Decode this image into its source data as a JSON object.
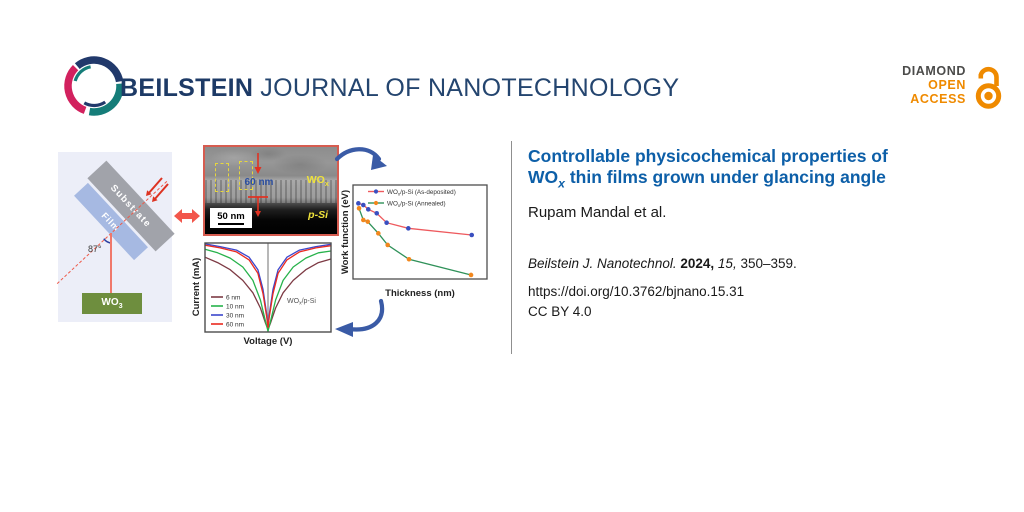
{
  "header": {
    "journal_name_bold": "BEILSTEIN",
    "journal_name_rest": "JOURNAL OF NANOTECHNOLOGY",
    "brand_colors": {
      "navy": "#1d3a66",
      "teal": "#157d79",
      "crimson": "#d2215e"
    },
    "open_access": {
      "line1": "DIAMOND",
      "line2": "OPEN",
      "line3": "ACCESS",
      "text_color": "#4b4b4a",
      "accent_color": "#ef8a00"
    }
  },
  "schematic": {
    "substrate_label": "Substrate",
    "film_label": "Film",
    "source_label": {
      "pre": "WO",
      "sub": "3"
    },
    "angle_label": "87°",
    "colors": {
      "panel_bg": "#eceef8",
      "substrate": "#a1a3aa",
      "film": "#a6b9e2",
      "source_box": "#6e8e3e",
      "beam_red": "#f0786b"
    }
  },
  "tem": {
    "thickness_label": "60 nm",
    "film_label": {
      "pre": "WO",
      "sub": "x"
    },
    "substrate_label": "p-Si",
    "scalebar_label": "50 nm"
  },
  "article": {
    "title": {
      "line1": "Controllable physicochemical properties of",
      "line2_pre": "WO",
      "line2_sub": "x",
      "line2_post": " thin films grown under glancing angle",
      "color": "#0d5fa8"
    },
    "authors": "Rupam Mandal et al.",
    "citation": {
      "journal": "Beilstein J. Nanotechnol.",
      "year": "2024,",
      "volume": "15,",
      "pages": "350–359."
    },
    "doi": "https://doi.org/10.3762/bjnano.15.31",
    "license": "CC BY 4.0"
  },
  "chart_data": [
    {
      "type": "line",
      "id": "iv",
      "xlabel": "Voltage (V)",
      "ylabel": "Current (mA)",
      "annotation": {
        "pre": "WO",
        "sub": "x",
        "post": "/p-Si"
      },
      "axes_numeric": false,
      "note": "symmetric V-shaped I-V curves on unlabeled axes; points are normalized plot coordinates (x 0-1 left-right, y 0-1 bottom-top), vertical zero-voltage line at x=0.5",
      "legend_position": "lower-left-inside",
      "series": [
        {
          "name": "6 nm",
          "color": "#7d3a44",
          "points": [
            [
              0,
              0.84
            ],
            [
              0.1,
              0.78
            ],
            [
              0.2,
              0.7
            ],
            [
              0.3,
              0.58
            ],
            [
              0.38,
              0.44
            ],
            [
              0.44,
              0.27
            ],
            [
              0.48,
              0.1
            ],
            [
              0.5,
              0.03
            ],
            [
              0.52,
              0.1
            ],
            [
              0.56,
              0.27
            ],
            [
              0.62,
              0.44
            ],
            [
              0.7,
              0.58
            ],
            [
              0.8,
              0.7
            ],
            [
              0.9,
              0.78
            ],
            [
              1,
              0.82
            ]
          ]
        },
        {
          "name": "10 nm",
          "color": "#27b24b",
          "points": [
            [
              0,
              0.93
            ],
            [
              0.1,
              0.89
            ],
            [
              0.2,
              0.83
            ],
            [
              0.3,
              0.73
            ],
            [
              0.38,
              0.58
            ],
            [
              0.44,
              0.36
            ],
            [
              0.48,
              0.12
            ],
            [
              0.5,
              0.01
            ],
            [
              0.52,
              0.12
            ],
            [
              0.56,
              0.36
            ],
            [
              0.62,
              0.58
            ],
            [
              0.7,
              0.73
            ],
            [
              0.8,
              0.83
            ],
            [
              0.9,
              0.89
            ],
            [
              1,
              0.91
            ]
          ]
        },
        {
          "name": "30 nm",
          "color": "#3c47cc",
          "points": [
            [
              0,
              0.99
            ],
            [
              0.12,
              0.96
            ],
            [
              0.25,
              0.92
            ],
            [
              0.35,
              0.84
            ],
            [
              0.42,
              0.7
            ],
            [
              0.46,
              0.48
            ],
            [
              0.49,
              0.2
            ],
            [
              0.5,
              0.07
            ],
            [
              0.51,
              0.2
            ],
            [
              0.54,
              0.48
            ],
            [
              0.58,
              0.7
            ],
            [
              0.65,
              0.84
            ],
            [
              0.75,
              0.92
            ],
            [
              0.88,
              0.96
            ],
            [
              1,
              0.985
            ]
          ]
        },
        {
          "name": "60 nm",
          "color": "#ea2a20",
          "points": [
            [
              0,
              0.975
            ],
            [
              0.12,
              0.945
            ],
            [
              0.25,
              0.9
            ],
            [
              0.35,
              0.81
            ],
            [
              0.42,
              0.66
            ],
            [
              0.46,
              0.43
            ],
            [
              0.49,
              0.17
            ],
            [
              0.5,
              0.05
            ],
            [
              0.51,
              0.17
            ],
            [
              0.54,
              0.43
            ],
            [
              0.58,
              0.66
            ],
            [
              0.65,
              0.81
            ],
            [
              0.75,
              0.9
            ],
            [
              0.88,
              0.945
            ],
            [
              1,
              0.97
            ]
          ]
        }
      ]
    },
    {
      "type": "scatter",
      "id": "wf",
      "xlabel": "Thickness (nm)",
      "ylabel": "Work function (eV)",
      "axes_numeric": false,
      "note": "work function decreases with thickness; no numeric ticks shown, points are normalized plot coordinates",
      "legend_position": "upper-right-inside",
      "series": [
        {
          "name": {
            "pre": "WO",
            "sub": "x",
            "post": "/p-Si (As-deposited)"
          },
          "line_color": "#ee5a5e",
          "marker_color": "#3a4fc0",
          "points": [
            [
              0.04,
              0.805
            ],
            [
              0.077,
              0.787
            ],
            [
              0.114,
              0.741
            ],
            [
              0.177,
              0.699
            ],
            [
              0.251,
              0.599
            ],
            [
              0.413,
              0.539
            ],
            [
              0.886,
              0.468
            ]
          ]
        },
        {
          "name": {
            "pre": "WO",
            "sub": "x",
            "post": "/p-Si (Annealed)"
          },
          "line_color": "#2f9159",
          "marker_color": "#f2871d",
          "points": [
            [
              0.045,
              0.752
            ],
            [
              0.077,
              0.628
            ],
            [
              0.11,
              0.61
            ],
            [
              0.189,
              0.486
            ],
            [
              0.259,
              0.362
            ],
            [
              0.418,
              0.21
            ],
            [
              0.881,
              0.043
            ]
          ]
        }
      ]
    }
  ]
}
